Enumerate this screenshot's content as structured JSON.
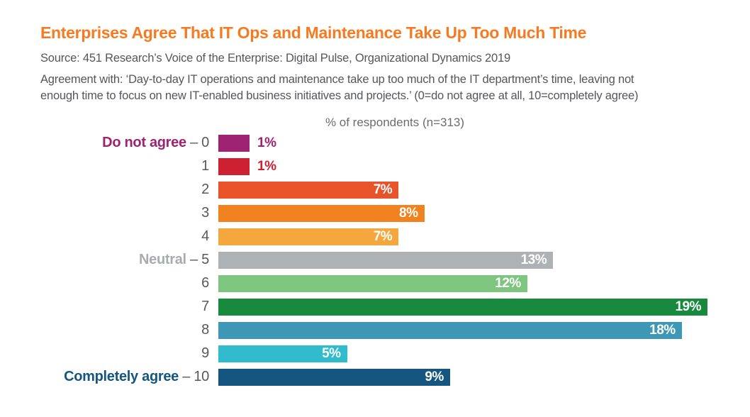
{
  "header": {
    "title": "Enterprises Agree That IT Ops and Maintenance Take Up Too Much Time",
    "source": "Source: 451 Research’s Voice of the Enterprise: Digital Pulse, Organizational Dynamics 2019",
    "description_line1": "Agreement with: ‘Day-to-day IT operations and maintenance take up too much of the IT department’s time, leaving not",
    "description_line2": "enough time to focus on new IT-enabled business initiatives and projects.’ (0=do not agree at all, 10=completely agree)"
  },
  "colors": {
    "title_orange": "#F47B21",
    "body_text_gray": "#55565A",
    "axis_title_gray": "#6B6C6F",
    "category_number_gray": "#58595C"
  },
  "chart_data": {
    "type": "bar",
    "orientation": "horizontal",
    "title": "% of respondents (n=313)",
    "n_respondents": 313,
    "categories": [
      "Do not agree – 0",
      "1",
      "2",
      "3",
      "4",
      "Neutral – 5",
      "6",
      "7",
      "8",
      "9",
      "Completely agree – 10"
    ],
    "values": [
      1,
      1,
      7,
      8,
      7,
      13,
      12,
      19,
      18,
      5,
      9
    ],
    "value_labels": [
      "1%",
      "1%",
      "7%",
      "8%",
      "7%",
      "13%",
      "12%",
      "19%",
      "18%",
      "5%",
      "9%"
    ],
    "bar_colors": [
      "#9E2372",
      "#CD2030",
      "#E9532A",
      "#F0831F",
      "#F3A73C",
      "#AEB2B5",
      "#7EC57F",
      "#178A3E",
      "#3E97B5",
      "#31BCCD",
      "#14567F"
    ],
    "xlim": [
      0,
      19
    ],
    "grid": false,
    "legend": false
  },
  "bars": [
    {
      "prefix": "Do not agree",
      "dash": "–",
      "number": "0",
      "value": 1,
      "label": "1%",
      "color": "#9E2372",
      "prefix_color": "#9E2372",
      "label_inside": false
    },
    {
      "prefix": "",
      "dash": "",
      "number": "1",
      "value": 1,
      "label": "1%",
      "color": "#CD2030",
      "prefix_color": "",
      "label_inside": false
    },
    {
      "prefix": "",
      "dash": "",
      "number": "2",
      "value": 7,
      "label": "7%",
      "color": "#E9532A",
      "prefix_color": "",
      "label_inside": true
    },
    {
      "prefix": "",
      "dash": "",
      "number": "3",
      "value": 8,
      "label": "8%",
      "color": "#F0831F",
      "prefix_color": "",
      "label_inside": true
    },
    {
      "prefix": "",
      "dash": "",
      "number": "4",
      "value": 7,
      "label": "7%",
      "color": "#F3A73C",
      "prefix_color": "",
      "label_inside": true
    },
    {
      "prefix": "Neutral",
      "dash": "–",
      "number": "5",
      "value": 13,
      "label": "13%",
      "color": "#AEB2B5",
      "prefix_color": "#A8ACAF",
      "label_inside": true
    },
    {
      "prefix": "",
      "dash": "",
      "number": "6",
      "value": 12,
      "label": "12%",
      "color": "#7EC57F",
      "prefix_color": "",
      "label_inside": true
    },
    {
      "prefix": "",
      "dash": "",
      "number": "7",
      "value": 19,
      "label": "19%",
      "color": "#178A3E",
      "prefix_color": "",
      "label_inside": true
    },
    {
      "prefix": "",
      "dash": "",
      "number": "8",
      "value": 18,
      "label": "18%",
      "color": "#3E97B5",
      "prefix_color": "",
      "label_inside": true
    },
    {
      "prefix": "",
      "dash": "",
      "number": "9",
      "value": 5,
      "label": "5%",
      "color": "#31BCCD",
      "prefix_color": "",
      "label_inside": true
    },
    {
      "prefix": "Completely agree",
      "dash": "–",
      "number": "10",
      "value": 9,
      "label": "9%",
      "color": "#14567F",
      "prefix_color": "#14567F",
      "label_inside": true
    }
  ]
}
